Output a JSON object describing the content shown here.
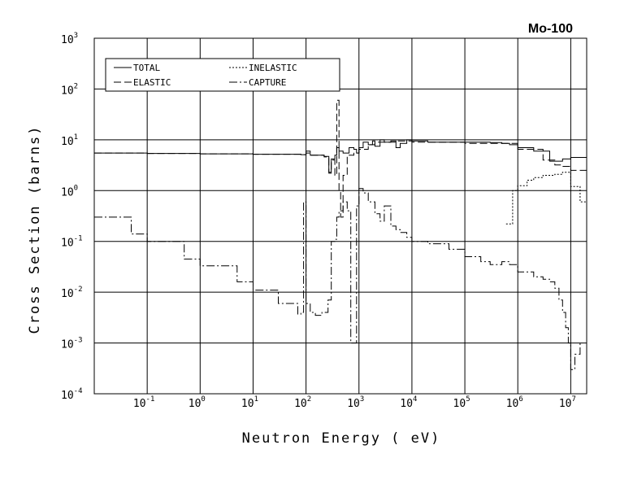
{
  "chart_data": {
    "type": "line",
    "title": "Mo-100",
    "xlabel": "Neutron Energy ( eV)",
    "ylabel": "Cross Section (barns)",
    "x_scale": "log",
    "y_scale": "log",
    "xlim": [
      0.01,
      20000000
    ],
    "ylim": [
      0.0001,
      1000
    ],
    "grid": true,
    "legend_position": "top-left",
    "x_ticks": [
      {
        "base": "10",
        "exp": "-1",
        "value": 0.1
      },
      {
        "base": "10",
        "exp": "0",
        "value": 1
      },
      {
        "base": "10",
        "exp": "1",
        "value": 10
      },
      {
        "base": "10",
        "exp": "2",
        "value": 100
      },
      {
        "base": "10",
        "exp": "3",
        "value": 1000
      },
      {
        "base": "10",
        "exp": "4",
        "value": 10000
      },
      {
        "base": "10",
        "exp": "5",
        "value": 100000
      },
      {
        "base": "10",
        "exp": "6",
        "value": 1000000
      },
      {
        "base": "10",
        "exp": "7",
        "value": 10000000
      }
    ],
    "y_ticks": [
      {
        "base": "10",
        "exp": "-4",
        "value": 0.0001
      },
      {
        "base": "10",
        "exp": "-3",
        "value": 0.001
      },
      {
        "base": "10",
        "exp": "-2",
        "value": 0.01
      },
      {
        "base": "10",
        "exp": "-1",
        "value": 0.1
      },
      {
        "base": "10",
        "exp": "0",
        "value": 1
      },
      {
        "base": "10",
        "exp": "1",
        "value": 10
      },
      {
        "base": "10",
        "exp": "2",
        "value": 100
      },
      {
        "base": "10",
        "exp": "3",
        "value": 1000
      }
    ],
    "series": [
      {
        "name": "TOTAL",
        "dash": "solid",
        "x": [
          0.01,
          0.1,
          1,
          10,
          80,
          100,
          120,
          220,
          270,
          300,
          350,
          380,
          420,
          500,
          650,
          800,
          900,
          1000,
          1200,
          1500,
          1800,
          2000,
          2500,
          3000,
          4000,
          5000,
          6000,
          8000,
          10000,
          20000,
          50000,
          100000,
          300000,
          500000,
          700000,
          1000000,
          2000000,
          4000000,
          7000000,
          10000000,
          20000000
        ],
        "y": [
          5.5,
          5.4,
          5.3,
          5.2,
          5.1,
          6.0,
          5.0,
          4.7,
          2.3,
          4.2,
          5.0,
          7.0,
          6.0,
          5.5,
          7.0,
          6.5,
          5.5,
          7.0,
          9.0,
          8.0,
          9.5,
          7.5,
          10.0,
          9.0,
          9.5,
          7.0,
          8.5,
          10.0,
          9.5,
          9.0,
          9.0,
          9.0,
          8.8,
          8.5,
          8.0,
          7.0,
          6.0,
          3.8,
          4.2,
          4.5,
          3.5
        ]
      },
      {
        "name": "ELASTIC",
        "dash": "dash",
        "x": [
          0.01,
          0.1,
          1,
          10,
          80,
          100,
          120,
          220,
          270,
          300,
          350,
          380,
          420,
          450,
          500,
          600,
          800,
          1000,
          1500,
          2000,
          5000,
          10000,
          100000,
          1000000,
          3000000,
          5000000,
          7000000,
          10000000,
          20000000
        ],
        "y": [
          5.5,
          5.4,
          5.3,
          5.2,
          5.1,
          5.5,
          5.0,
          4.6,
          2.2,
          4.0,
          2.0,
          60.0,
          1.0,
          0.3,
          2.0,
          5.0,
          5.5,
          6.5,
          8.0,
          9.0,
          9.5,
          9.0,
          8.5,
          6.5,
          4.0,
          3.2,
          3.0,
          2.5,
          1.9
        ]
      },
      {
        "name": "INELASTIC",
        "dash": "dot",
        "x": [
          600000,
          700000,
          800000,
          1000000,
          1500000,
          2000000,
          3000000,
          5000000,
          7000000,
          10000000,
          15000000,
          20000000
        ],
        "y": [
          0.22,
          0.22,
          1.0,
          1.25,
          1.6,
          1.8,
          2.0,
          2.1,
          2.3,
          1.2,
          0.6,
          0.35
        ]
      },
      {
        "name": "CAPTURE",
        "dash": "dashdot",
        "x": [
          0.01,
          0.05,
          0.1,
          0.5,
          1,
          5,
          10,
          30,
          70,
          80,
          90,
          100,
          120,
          150,
          200,
          260,
          300,
          350,
          380,
          420,
          500,
          600,
          700,
          800,
          900,
          1000,
          1200,
          1500,
          2000,
          2500,
          3000,
          4000,
          5000,
          6000,
          8000,
          10000,
          20000,
          50000,
          100000,
          200000,
          300000,
          500000,
          700000,
          1000000,
          2000000,
          3000000,
          4000000,
          5000000,
          6000000,
          7000000,
          8000000,
          9000000,
          10000000,
          12000000,
          15000000
        ],
        "y": [
          0.3,
          0.14,
          0.1,
          0.045,
          0.033,
          0.016,
          0.011,
          0.006,
          0.0037,
          0.004,
          0.6,
          0.006,
          0.004,
          0.0035,
          0.004,
          0.007,
          0.1,
          0.11,
          0.3,
          0.4,
          0.6,
          0.4,
          0.001,
          0.001,
          0.5,
          1.1,
          0.9,
          0.6,
          0.35,
          0.25,
          0.5,
          0.2,
          0.17,
          0.15,
          0.12,
          0.1,
          0.09,
          0.07,
          0.05,
          0.04,
          0.035,
          0.04,
          0.035,
          0.025,
          0.02,
          0.018,
          0.016,
          0.012,
          0.007,
          0.004,
          0.002,
          0.001,
          0.0003,
          0.0006,
          0.001
        ]
      }
    ]
  }
}
